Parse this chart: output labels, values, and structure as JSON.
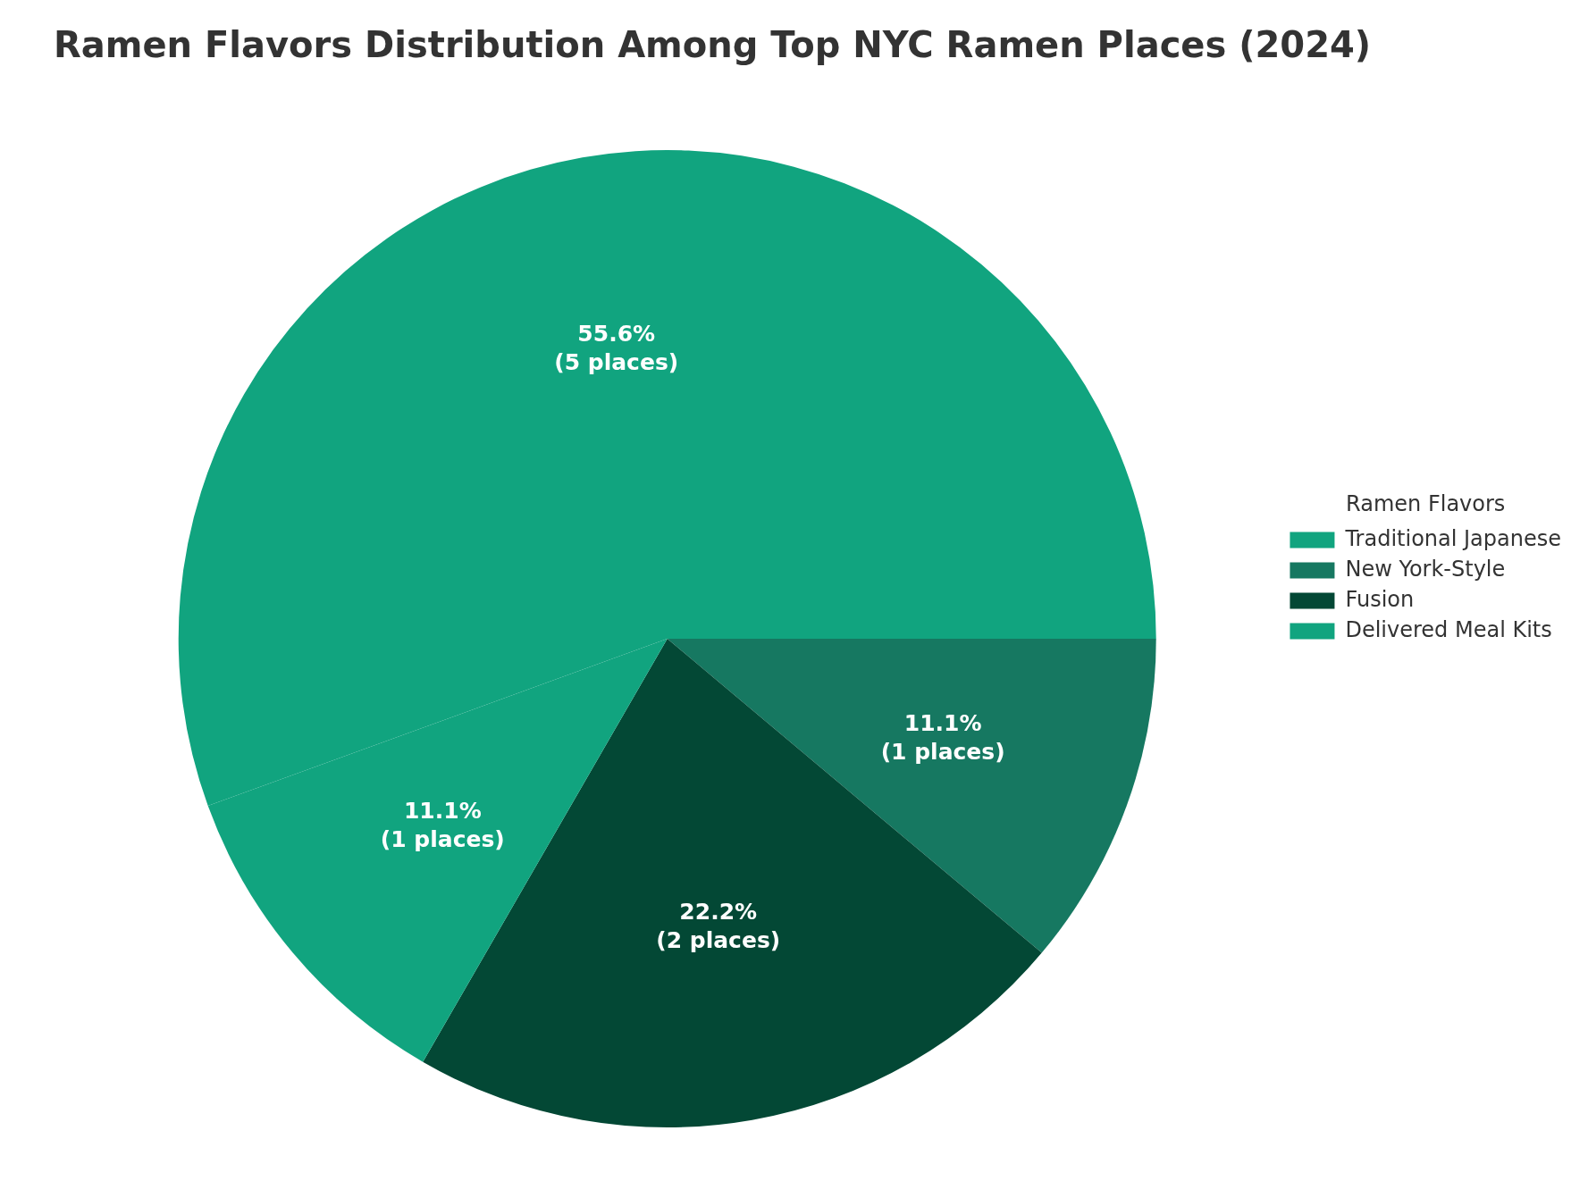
{
  "chart_data": {
    "type": "pie",
    "title": "Ramen Flavors Distribution Among Top NYC Ramen Places (2024)",
    "categories": [
      "Traditional Japanese",
      "New York-Style",
      "Fusion",
      "Delivered Meal Kits"
    ],
    "values": [
      5,
      1,
      2,
      1
    ],
    "value_labels": [
      "55.6%\n(5 places)",
      "11.1%\n(1 places)",
      "22.2%\n(2 places)",
      "11.1%\n(1 places)"
    ],
    "colors": [
      "#11a47f",
      "#167861",
      "#034835",
      "#11a47f"
    ],
    "legend": "right",
    "legend_title": "Ramen Flavors"
  }
}
